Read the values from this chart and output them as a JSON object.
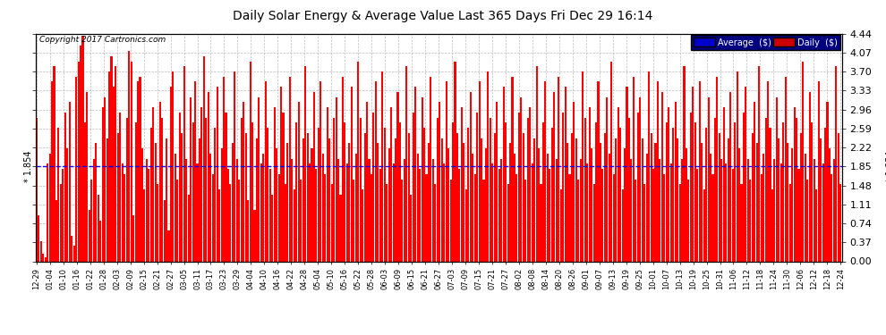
{
  "title": "Daily Solar Energy & Average Value Last 365 Days Fri Dec 29 16:14",
  "average_value": 1.854,
  "ylim": [
    0,
    4.44
  ],
  "yticks": [
    0.0,
    0.37,
    0.74,
    1.11,
    1.48,
    1.85,
    2.22,
    2.59,
    2.96,
    3.33,
    3.7,
    4.07,
    4.44
  ],
  "bar_color": "#FF0000",
  "avg_line_color": "#0000FF",
  "background_color": "#FFFFFF",
  "grid_color": "#AAAAAA",
  "copyright_text": "Copyright 2017 Cartronics.com",
  "legend_avg_color": "#0000CC",
  "legend_daily_color": "#CC0000",
  "legend_avg_label": "Average  ($)",
  "legend_daily_label": "Daily  ($)",
  "x_tick_labels": [
    "12-29",
    "01-04",
    "01-10",
    "01-16",
    "01-22",
    "01-28",
    "02-03",
    "02-09",
    "02-15",
    "02-21",
    "02-27",
    "03-05",
    "03-11",
    "03-17",
    "03-23",
    "03-29",
    "04-04",
    "04-10",
    "04-16",
    "04-22",
    "04-28",
    "05-04",
    "05-10",
    "05-16",
    "05-22",
    "05-28",
    "06-03",
    "06-09",
    "06-15",
    "06-21",
    "06-27",
    "07-03",
    "07-09",
    "07-15",
    "07-21",
    "07-27",
    "08-02",
    "08-08",
    "08-14",
    "08-20",
    "08-26",
    "09-01",
    "09-07",
    "09-13",
    "09-19",
    "09-25",
    "10-01",
    "10-07",
    "10-13",
    "10-19",
    "10-25",
    "10-31",
    "11-06",
    "11-12",
    "11-18",
    "11-24",
    "11-30",
    "12-06",
    "12-12",
    "12-18",
    "12-24"
  ],
  "bar_values": [
    2.8,
    0.9,
    0.4,
    0.15,
    0.08,
    1.9,
    2.1,
    3.5,
    3.8,
    1.2,
    2.6,
    1.5,
    1.8,
    2.9,
    2.2,
    3.1,
    0.5,
    0.3,
    3.6,
    3.9,
    4.2,
    4.4,
    2.7,
    3.3,
    1.0,
    1.6,
    2.0,
    2.3,
    1.3,
    0.8,
    3.0,
    3.2,
    2.4,
    3.7,
    4.0,
    3.4,
    3.8,
    2.5,
    2.9,
    1.9,
    1.7,
    2.8,
    4.1,
    3.9,
    0.9,
    2.7,
    3.5,
    3.6,
    2.2,
    1.4,
    2.0,
    1.8,
    2.6,
    3.0,
    2.3,
    1.5,
    3.1,
    2.8,
    1.2,
    2.4,
    0.6,
    3.4,
    3.7,
    2.1,
    1.6,
    2.9,
    2.5,
    3.8,
    2.0,
    1.3,
    3.2,
    2.7,
    3.5,
    1.9,
    2.4,
    3.0,
    4.0,
    2.8,
    3.3,
    2.1,
    1.7,
    2.6,
    3.4,
    1.4,
    2.2,
    3.6,
    2.9,
    1.8,
    1.5,
    2.3,
    3.7,
    2.0,
    1.6,
    2.8,
    3.1,
    2.5,
    1.2,
    3.9,
    2.7,
    1.0,
    2.4,
    3.2,
    1.9,
    2.1,
    3.5,
    2.6,
    1.8,
    1.3,
    3.0,
    2.2,
    1.7,
    3.4,
    2.9,
    1.5,
    2.3,
    3.6,
    2.0,
    1.4,
    2.7,
    3.1,
    1.6,
    2.4,
    3.8,
    2.5,
    1.9,
    2.2,
    3.3,
    1.8,
    2.6,
    3.5,
    2.1,
    1.7,
    3.0,
    2.4,
    1.5,
    2.8,
    3.2,
    2.0,
    1.3,
    3.6,
    2.7,
    1.9,
    2.3,
    3.4,
    1.6,
    2.1,
    3.9,
    2.8,
    1.4,
    2.5,
    3.1,
    2.0,
    1.7,
    2.9,
    3.5,
    2.3,
    1.8,
    3.7,
    2.6,
    1.5,
    2.2,
    3.0,
    1.9,
    2.4,
    3.3,
    2.7,
    1.6,
    2.0,
    3.8,
    2.5,
    1.3,
    2.9,
    3.4,
    2.1,
    1.8,
    3.2,
    2.6,
    1.7,
    2.3,
    3.6,
    2.0,
    1.5,
    2.8,
    3.1,
    2.4,
    1.9,
    3.5,
    2.2,
    1.6,
    2.7,
    3.9,
    2.5,
    1.8,
    3.0,
    2.3,
    1.4,
    2.6,
    3.3,
    2.1,
    1.7,
    2.9,
    3.5,
    2.4,
    1.6,
    2.2,
    3.7,
    2.8,
    1.9,
    2.5,
    3.1,
    1.8,
    2.0,
    3.4,
    2.7,
    1.5,
    2.3,
    3.6,
    2.1,
    1.7,
    2.9,
    3.2,
    2.5,
    1.6,
    2.8,
    3.0,
    1.9,
    2.4,
    3.8,
    2.2,
    1.5,
    2.7,
    3.5,
    2.1,
    1.8,
    2.6,
    3.3,
    2.0,
    3.6,
    1.4,
    2.9,
    3.4,
    2.3,
    1.7,
    2.5,
    3.1,
    2.4,
    1.6,
    2.0,
    3.7,
    2.8,
    1.9,
    3.0,
    2.2,
    1.5,
    2.7,
    3.5,
    2.3,
    1.8,
    2.5,
    3.2,
    2.1,
    3.9,
    1.7,
    2.4,
    3.0,
    2.6,
    1.4,
    2.2,
    3.4,
    2.8,
    2.0,
    3.6,
    1.6,
    2.9,
    3.2,
    2.4,
    1.5,
    2.1,
    3.7,
    2.5,
    1.8,
    2.3,
    3.5,
    2.0,
    3.3,
    1.7,
    2.7,
    3.0,
    1.9,
    2.6,
    3.1,
    2.4,
    1.5,
    2.0,
    3.8,
    2.2,
    1.6,
    2.9,
    3.4,
    2.7,
    1.8,
    3.5,
    2.3,
    1.4,
    2.6,
    3.2,
    2.1,
    1.7,
    2.8,
    3.6,
    2.5,
    2.0,
    3.0,
    1.9,
    2.4,
    3.3,
    1.8,
    2.7,
    3.7,
    2.2,
    1.5,
    2.9,
    3.4,
    2.0,
    1.6,
    2.5,
    3.1,
    2.3,
    3.8,
    1.7,
    2.1,
    2.8,
    3.5,
    2.6,
    1.4,
    2.0,
    3.2,
    2.4,
    1.9,
    2.7,
    3.6,
    2.3,
    1.5,
    2.2,
    3.0,
    2.8,
    1.8,
    2.5,
    3.9,
    2.1,
    1.6,
    3.3,
    2.7,
    2.0,
    1.4,
    3.5,
    2.4,
    1.9,
    2.6,
    3.1,
    2.2,
    1.7,
    2.0,
    3.8,
    2.5,
    1.5
  ]
}
